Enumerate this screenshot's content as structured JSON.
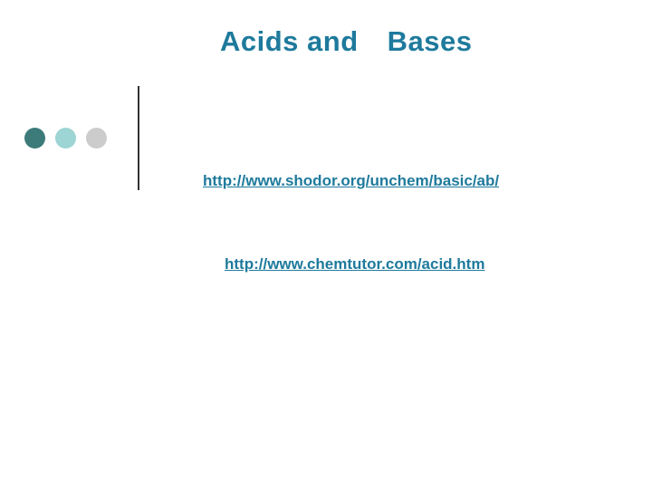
{
  "slide": {
    "title_part1": "Acids and",
    "title_part2": "Bases",
    "title_color": "#1e7a9c",
    "title_fontsize": 31,
    "background_color": "#ffffff",
    "decoration": {
      "circles": [
        {
          "color": "#3d7a7a",
          "size": 23
        },
        {
          "color": "#9dd4d4",
          "size": 23
        },
        {
          "color": "#cccccc",
          "size": 23
        }
      ],
      "line_color": "#333333",
      "line_height": 115
    },
    "links": [
      {
        "text": " http://www.shodor.org/unchem/basic/ab/",
        "color": "#1e7a9c",
        "fontsize": 17
      },
      {
        "text": "http://www.chemtutor.com/acid.htm",
        "color": "#1e7a9c",
        "fontsize": 17
      }
    ]
  }
}
